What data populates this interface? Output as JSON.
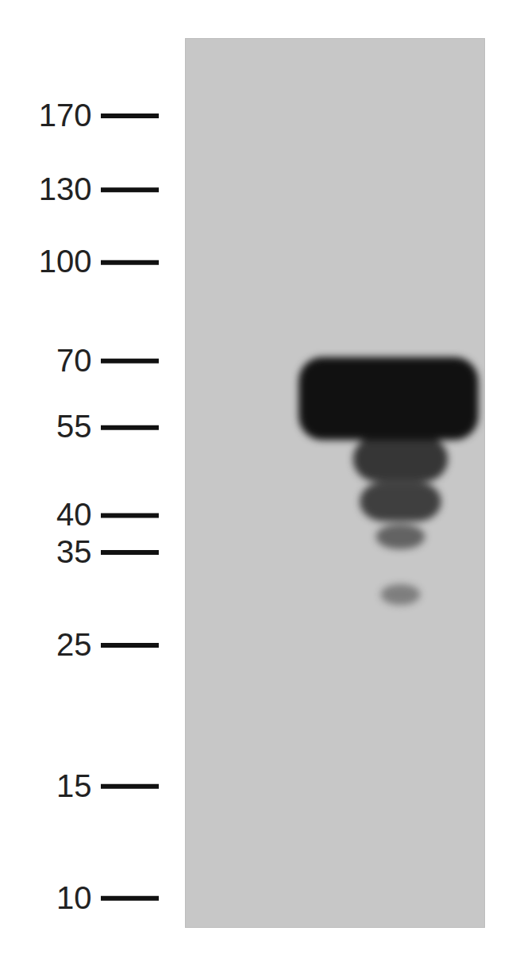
{
  "chart_data": {
    "type": "blot",
    "log": "y",
    "ylim": [
      9,
      225
    ],
    "yticks": [
      170,
      130,
      100,
      70,
      55,
      40,
      35,
      25,
      15,
      10
    ],
    "tick_labels": "y",
    "color": "#111111",
    "bands": {
      "values": [
        61,
        49,
        42,
        37,
        30
      ],
      "intensity": [
        1,
        0.8,
        0.75,
        0.55,
        0.4
      ]
    }
  }
}
